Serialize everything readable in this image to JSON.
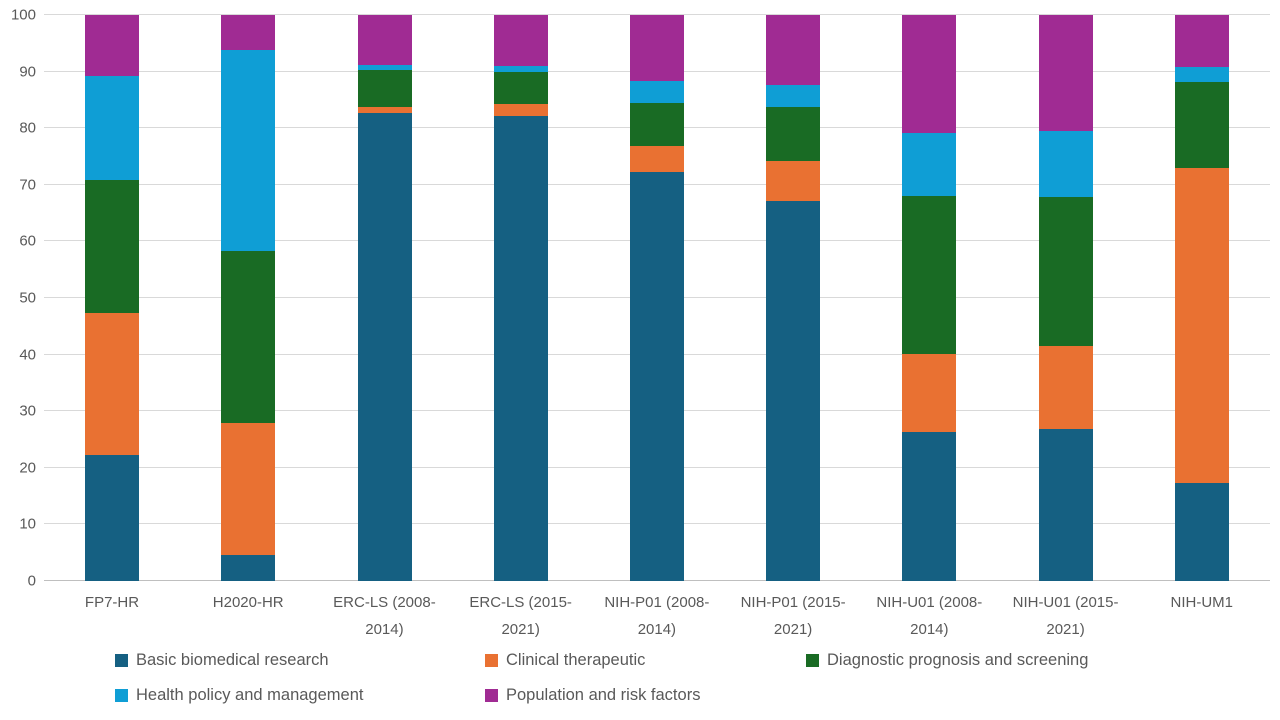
{
  "chart_data": {
    "type": "bar",
    "variant": "stacked-100-percent-column",
    "title": "",
    "xlabel": "",
    "ylabel": "",
    "grid": true,
    "legend_position": "bottom",
    "background": "#FFFFFF",
    "grid_color": "#D9D9D9",
    "axis_line_color": "#BFBFBF",
    "text_color": "#595959",
    "ylim": [
      0,
      100
    ],
    "yticks": [
      0,
      10,
      20,
      30,
      40,
      50,
      60,
      70,
      80,
      90,
      100
    ],
    "categories": [
      "FP7-HR",
      "H2020-HR",
      "ERC-LS (2008-2014)",
      "ERC-LS (2015-2021)",
      "NIH-P01 (2008-2014)",
      "NIH-P01 (2015-2021)",
      "NIH-U01 (2008-2014)",
      "NIH-U01 (2015-2021)",
      "NIH-UM1"
    ],
    "series": [
      {
        "name": "Basic biomedical research",
        "color": "#156082",
        "values": [
          22.2,
          4.6,
          82.6,
          82.1,
          72.3,
          67.2,
          26.3,
          26.9,
          17.3
        ]
      },
      {
        "name": "Clinical therapeutic",
        "color": "#E97132",
        "values": [
          25.2,
          23.3,
          1.2,
          2.2,
          4.6,
          7.0,
          13.8,
          14.6,
          55.6
        ]
      },
      {
        "name": "Diagnostic prognosis and screening",
        "color": "#196B24",
        "values": [
          23.5,
          30.4,
          6.5,
          5.6,
          7.5,
          9.6,
          28.0,
          26.3,
          15.2
        ]
      },
      {
        "name": "Health policy and management",
        "color": "#0F9ED5",
        "values": [
          18.4,
          35.6,
          0.9,
          1.1,
          3.9,
          3.8,
          11.1,
          11.7,
          2.8
        ]
      },
      {
        "name": "Population and risk factors",
        "color": "#A02B93",
        "values": [
          10.7,
          6.1,
          8.8,
          9.0,
          11.7,
          12.4,
          20.8,
          20.5,
          9.1
        ]
      }
    ]
  }
}
